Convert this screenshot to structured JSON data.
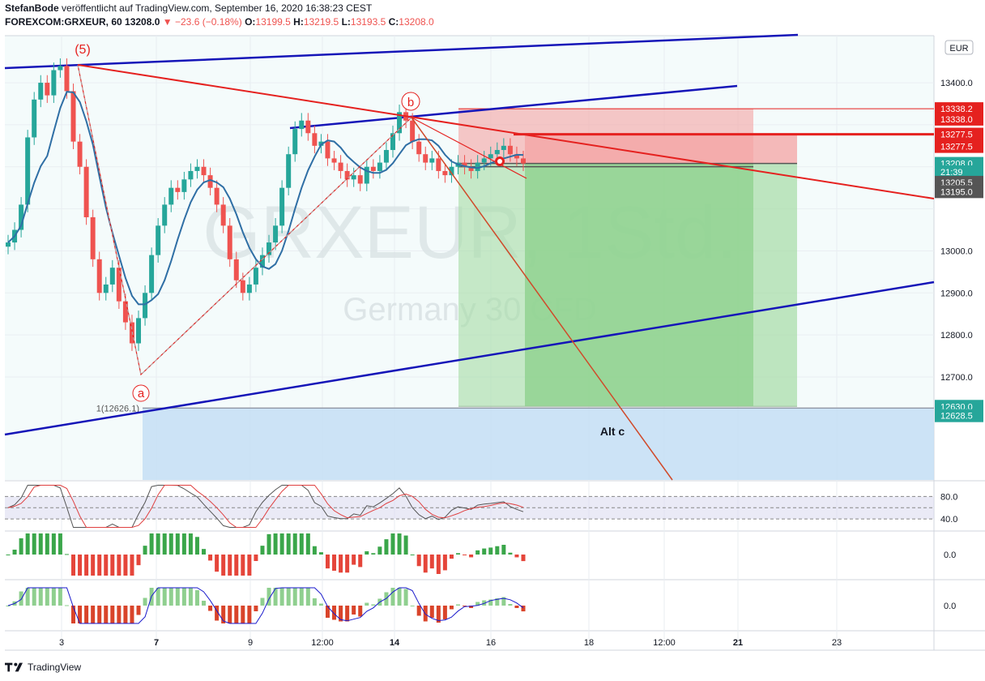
{
  "header": {
    "author": "StefanBode",
    "published": "veröffentlicht auf TradingView.com, September 16, 2020 16:38:23 CEST",
    "symbol": "FOREXCOM:GRXEUR, 60",
    "last": "13208.0",
    "change": "−23.6 (−0.18%)",
    "o_label": "O:",
    "o_value": "13199.5",
    "h_label": "H:",
    "h_value": "13219.5",
    "l_label": "L:",
    "l_value": "13193.5",
    "c_label": "C:",
    "c_value": "13208.0"
  },
  "footer": {
    "brand": "TradingView",
    "logo_icon": "tradingview-logo-icon"
  },
  "colors": {
    "up": "#26a69a",
    "down": "#ef5350",
    "trend_blue": "#1515b8",
    "wave_red": "#e5211f",
    "ma": "#2f6fa5",
    "stop_zone": "#f4a3a3",
    "target_zone": "#a5dca5",
    "support_zone": "#c4def5",
    "rsi_band": "#dcdcf0",
    "macd_up": "#3aa64a",
    "macd_down": "#e5453a"
  },
  "chart_data": {
    "type": "candlestick",
    "title": "",
    "watermark": {
      "symbol": "GRXEUR, 1Std.",
      "name": "Germany 30 CFD"
    },
    "currency_label": "EUR",
    "ylim": [
      12455,
      13512
    ],
    "y_ticks": [
      13400.0,
      13300.0,
      13200.0,
      13100.0,
      13000.0,
      12900.0,
      12800.0,
      12700.0
    ],
    "y_tick_labels": [
      "13400.0",
      "",
      "",
      "",
      "13000.0",
      "12900.0",
      "12800.0",
      "12700.0"
    ],
    "x_tick_labels": [
      {
        "label": "3",
        "bold": false
      },
      {
        "label": "7",
        "bold": true
      },
      {
        "label": "9",
        "bold": false
      },
      {
        "label": "12:00",
        "bold": false
      },
      {
        "label": "14",
        "bold": true
      },
      {
        "label": "16",
        "bold": false
      },
      {
        "label": "18",
        "bold": false
      },
      {
        "label": "12:00",
        "bold": false
      },
      {
        "label": "21",
        "bold": true
      },
      {
        "label": "23",
        "bold": false
      }
    ],
    "price_markers": [
      {
        "label": "13338.2",
        "value": 13338.2,
        "bg": "#e5211f",
        "fg": "#ffffff"
      },
      {
        "label": "13338.0",
        "value": 13313.5,
        "bg": "#e5211f",
        "fg": "#ffffff"
      },
      {
        "label": "13277.5",
        "value": 13277.5,
        "bg": "#e5211f",
        "fg": "#ffffff"
      },
      {
        "label": "13277.5",
        "value": 13248.5,
        "bg": "#e5211f",
        "fg": "#ffffff"
      },
      {
        "label": "13208.0",
        "value": 13208.0,
        "bg": "#26a69a",
        "fg": "#ffffff"
      },
      {
        "label": "21:39",
        "value": 13188.0,
        "bg": "#26a69a",
        "fg": "#ffffff"
      },
      {
        "label": "13205.5",
        "value": 13163.0,
        "bg": "#555555",
        "fg": "#ffffff"
      },
      {
        "label": "13195.0",
        "value": 13141.0,
        "bg": "#555555",
        "fg": "#ffffff"
      },
      {
        "label": "12630.0",
        "value": 12630.0,
        "bg": "#26a69a",
        "fg": "#ffffff"
      },
      {
        "label": "12628.5",
        "value": 12608.0,
        "bg": "#26a69a",
        "fg": "#ffffff"
      }
    ],
    "wave_labels": [
      "(5)",
      "a",
      "b"
    ],
    "fib_label": "1(12626.1)",
    "alt_label": "Alt c",
    "swing_points": [
      {
        "label": "(5)",
        "date": "Sep 3 21:00",
        "price": 13462
      },
      {
        "label": "a",
        "date": "Sep 7 09:00",
        "price": 12748
      },
      {
        "label": "b",
        "date": "Sep 14 08:00",
        "price": 13340
      }
    ],
    "levels": {
      "stop": 13338.2,
      "entry_high": 13277.5,
      "entry": 13208.0,
      "target": 12630.0,
      "fib_100": 12626.1
    },
    "close_series": [
      13020,
      13050,
      13110,
      13270,
      13360,
      13400,
      13370,
      13430,
      13440,
      13380,
      13260,
      13200,
      13080,
      12980,
      12900,
      12920,
      12960,
      12880,
      12830,
      12780,
      12840,
      12900,
      12990,
      13060,
      13110,
      13150,
      13140,
      13170,
      13190,
      13200,
      13180,
      13150,
      13110,
      13060,
      12980,
      12930,
      12900,
      12920,
      12960,
      12990,
      13020,
      13060,
      13150,
      13230,
      13290,
      13310,
      13280,
      13250,
      13260,
      13220,
      13210,
      13190,
      13170,
      13180,
      13160,
      13200,
      13190,
      13210,
      13240,
      13280,
      13330,
      13310,
      13260,
      13230,
      13210,
      13220,
      13190,
      13180,
      13200,
      13210,
      13200,
      13190,
      13210,
      13220,
      13230,
      13240,
      13250,
      13230,
      13220,
      13208
    ],
    "indicators": [
      {
        "name": "",
        "type": "oscillator",
        "levels": [
          "80.0",
          "40.0"
        ]
      },
      {
        "name": "",
        "type": "histogram",
        "zero_label": "0.0"
      },
      {
        "name": "",
        "type": "histogram",
        "zero_label": "0.0"
      }
    ]
  }
}
